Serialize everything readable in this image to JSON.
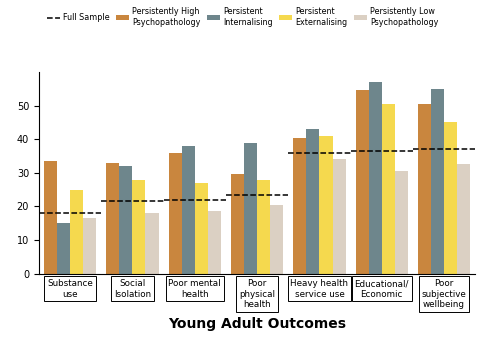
{
  "chart_data": {
    "type": "bar",
    "x_label": "Young Adult Outcomes",
    "categories": [
      "Substance use",
      "Social Isolation",
      "Poor mental health",
      "Poor physical health",
      "Heavy health service use",
      "Educational/ Economic",
      "Poor subjective wellbeing"
    ],
    "series": [
      {
        "name": "Full Sample",
        "type": "line",
        "line_style": "dashed",
        "color": "#000000",
        "values": [
          18,
          21.5,
          22,
          23.5,
          36,
          36.5,
          37
        ]
      },
      {
        "name": "Persistently High Psychopathology",
        "color": "#c9863e",
        "values": [
          33.5,
          33,
          36,
          29.5,
          40.5,
          54.5,
          50.5
        ]
      },
      {
        "name": "Persistent Internalising",
        "color": "#6e868c",
        "values": [
          15,
          32,
          38,
          39,
          43,
          57,
          55
        ]
      },
      {
        "name": "Persistent Externalising",
        "color": "#f5d94e",
        "values": [
          25,
          28,
          27,
          28,
          41,
          50.5,
          45
        ]
      },
      {
        "name": "Persistently Low Psychopathology",
        "color": "#dbd0c3",
        "values": [
          16.5,
          18,
          18.5,
          20.5,
          34,
          30.5,
          32.5
        ]
      }
    ],
    "ylim": [
      0,
      60
    ],
    "yticks": [
      0,
      10,
      20,
      30,
      40,
      50
    ],
    "grid": false,
    "legend": "upper center"
  }
}
